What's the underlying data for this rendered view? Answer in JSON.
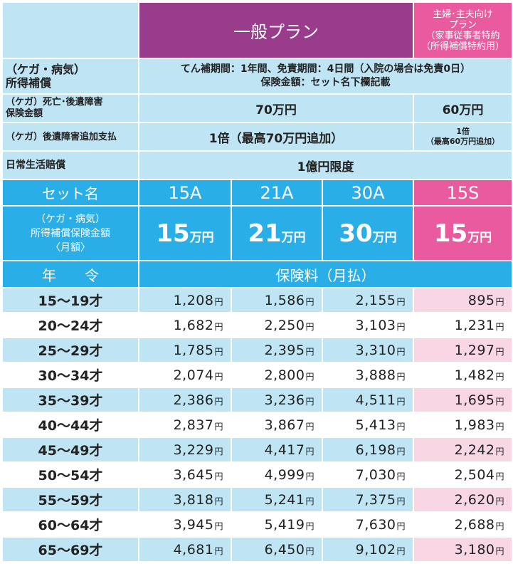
{
  "header": {
    "general_plan": "一般プラン",
    "special_plan": [
      "主婦･主夫向け",
      "プラン",
      "（家事従事者特約",
      "（所得補償特約用）"
    ]
  },
  "coverage": [
    {
      "label": [
        "（ケガ・病気）",
        "所得補償"
      ],
      "value": [
        "てん補期間：1年間、免責期間：4日間（入院の場合は免責0日）",
        "保険金額：セット名下欄記載"
      ]
    },
    {
      "label": [
        "（ケガ）死亡･後遺障害",
        "保険金額"
      ],
      "general": "70万円",
      "special": "60万円"
    },
    {
      "label": [
        "（ケガ）後遺障害追加支払"
      ],
      "general": "1倍（最高70万円追加）",
      "special": [
        "1倍",
        "（最高60万円追加）"
      ]
    },
    {
      "label": [
        "日常生活賠償"
      ],
      "value": "1億円限度"
    }
  ],
  "sets": {
    "label": "セット名",
    "names": [
      "15A",
      "21A",
      "30A",
      "15S"
    ],
    "amount_label": [
      "（ケガ・病気）",
      "所得補償保険金額",
      "〈月額〉"
    ],
    "amounts": [
      {
        "n": "15",
        "unit": "万円"
      },
      {
        "n": "21",
        "unit": "万円"
      },
      {
        "n": "30",
        "unit": "万円"
      },
      {
        "n": "15",
        "unit": "万円"
      }
    ]
  },
  "premium_header": {
    "age_label": "年　　令",
    "premium_label": "保険料（月払）"
  },
  "currency_unit": "円",
  "rows": [
    {
      "age": "15〜19才",
      "values": [
        "1,208",
        "1,586",
        "2,155",
        "895"
      ]
    },
    {
      "age": "20〜24才",
      "values": [
        "1,682",
        "2,250",
        "3,103",
        "1,231"
      ]
    },
    {
      "age": "25〜29才",
      "values": [
        "1,785",
        "2,395",
        "3,310",
        "1,297"
      ]
    },
    {
      "age": "30〜34才",
      "values": [
        "2,074",
        "2,800",
        "3,888",
        "1,482"
      ]
    },
    {
      "age": "35〜39才",
      "values": [
        "2,386",
        "3,236",
        "4,511",
        "1,695"
      ]
    },
    {
      "age": "40〜44才",
      "values": [
        "2,837",
        "3,867",
        "5,413",
        "1,983"
      ]
    },
    {
      "age": "45〜49才",
      "values": [
        "3,229",
        "4,417",
        "6,198",
        "2,242"
      ]
    },
    {
      "age": "50〜54才",
      "values": [
        "3,645",
        "4,999",
        "7,030",
        "2,504"
      ]
    },
    {
      "age": "55〜59才",
      "values": [
        "3,818",
        "5,241",
        "7,375",
        "2,620"
      ]
    },
    {
      "age": "60〜64才",
      "values": [
        "3,945",
        "5,419",
        "7,630",
        "2,688"
      ]
    },
    {
      "age": "65〜69才",
      "values": [
        "4,681",
        "6,450",
        "9,102",
        "3,180"
      ]
    }
  ],
  "colors": {
    "light_blue": "#bfe4f4",
    "header_blue": "#2aaee8",
    "purple": "#9a3c8c",
    "pink": "#ea5a9e",
    "light_pink": "#f8d6e4"
  }
}
